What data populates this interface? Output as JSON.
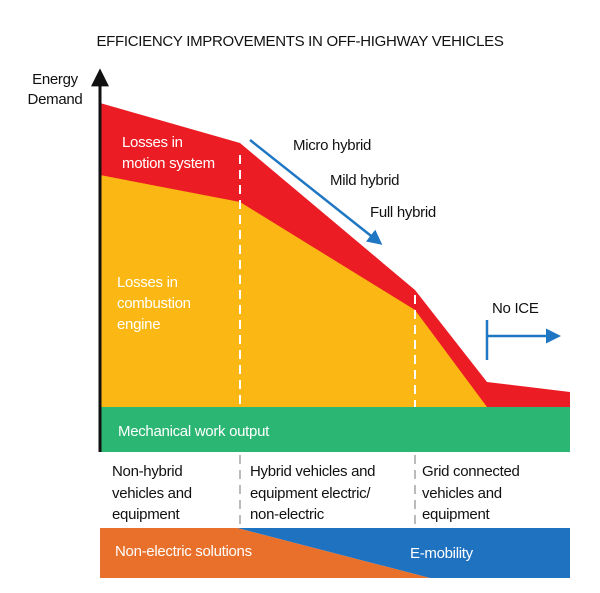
{
  "title": "EFFICIENCY IMPROVEMENTS IN OFF-HIGHWAY VEHICLES",
  "y_axis_label": [
    "Energy",
    "Demand"
  ],
  "regions": {
    "motion_losses": [
      "Losses in",
      "motion system"
    ],
    "combustion_losses": [
      "Losses in",
      "combustion",
      "engine"
    ],
    "work_output": "Mechanical work output"
  },
  "hybrid_steps": [
    "Micro hybrid",
    "Mild hybrid",
    "Full hybrid"
  ],
  "no_ice": "No ICE",
  "stages": [
    [
      "Non-hybrid",
      "vehicles and",
      "equipment"
    ],
    [
      "Hybrid vehicles and",
      "equipment electric/",
      "non-electric"
    ],
    [
      "Grid connected",
      "vehicles and",
      "equipment"
    ]
  ],
  "solutions": {
    "left": "Non-electric solutions",
    "right": "E-mobility"
  }
}
